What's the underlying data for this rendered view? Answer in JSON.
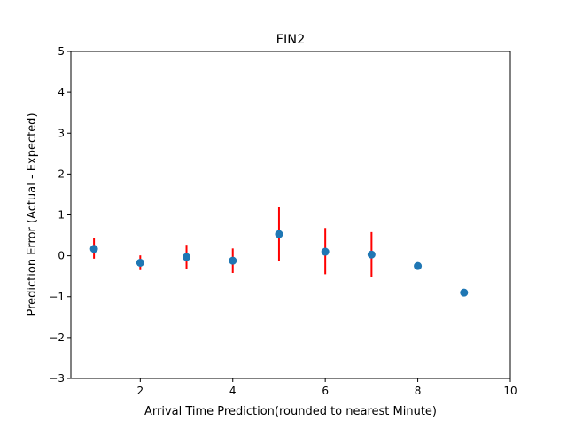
{
  "chart_data": {
    "type": "scatter",
    "title": "FIN2",
    "xlabel": "Arrival Time Prediction(rounded to nearest Minute)",
    "ylabel": "Prediction Error (Actual - Expected)",
    "xlim": [
      0.5,
      10
    ],
    "ylim": [
      -3,
      5
    ],
    "xticks": [
      2,
      4,
      6,
      8,
      10
    ],
    "xtick_labels": [
      "2",
      "4",
      "6",
      "8",
      "10"
    ],
    "yticks": [
      -3,
      -2,
      -1,
      0,
      1,
      2,
      3,
      4,
      5
    ],
    "ytick_labels": [
      "−3",
      "−2",
      "−1",
      "0",
      "1",
      "2",
      "3",
      "4",
      "5"
    ],
    "grid": false,
    "legend": "none",
    "series": [
      {
        "x": [
          1,
          2,
          3,
          4,
          5,
          6,
          7,
          8,
          9
        ],
        "y": [
          0.17,
          -0.17,
          -0.03,
          -0.12,
          0.53,
          0.1,
          0.03,
          -0.25,
          -0.9
        ],
        "error_low": [
          -0.07,
          -0.35,
          -0.32,
          -0.42,
          -0.12,
          -0.45,
          -0.52,
          null,
          null
        ],
        "error_high": [
          0.44,
          0.01,
          0.27,
          0.18,
          1.2,
          0.68,
          0.58,
          null,
          null
        ]
      }
    ],
    "colors": {
      "points": "#1f77b4",
      "errorbars": "#ff0000",
      "axes": "#000000"
    }
  }
}
